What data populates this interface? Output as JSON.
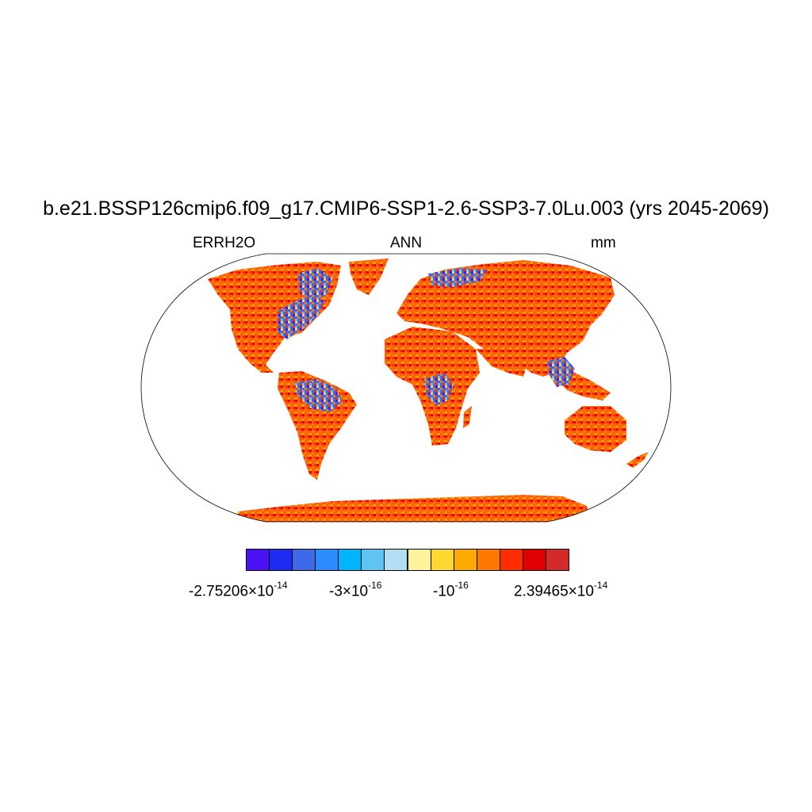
{
  "title": "b.e21.BSSP126cmip6.f09_g17.CMIP6-SSP1-2.6-SSP3-7.0Lu.003 (yrs 2045-2069)",
  "subtitles": {
    "left": "ERRH2O",
    "center": "ANN",
    "right": "mm"
  },
  "colorbar": {
    "colors": [
      "#4a12f5",
      "#1c2cf0",
      "#3d6ae8",
      "#2a8cff",
      "#00b4ff",
      "#5ec4f2",
      "#b0def2",
      "#fff49c",
      "#ffd830",
      "#ffaa00",
      "#ff7800",
      "#ff2c00",
      "#e00000",
      "#d42a2a"
    ],
    "labels": [
      {
        "mantissa": "-2.75206×10",
        "exponent": "-14"
      },
      {
        "mantissa": "-3×10",
        "exponent": "-16"
      },
      {
        "mantissa": "-10",
        "exponent": "-16"
      },
      {
        "mantissa": "2.39465×10",
        "exponent": "-14"
      }
    ]
  },
  "map": {
    "projection": "robinson",
    "dominant_color": "#ff5a10",
    "cool_patch_regions": [
      "eastern-north-america",
      "hudson-bay",
      "amazon-basin",
      "central-africa",
      "southeast-asia",
      "siberia-arctic-coast"
    ]
  }
}
